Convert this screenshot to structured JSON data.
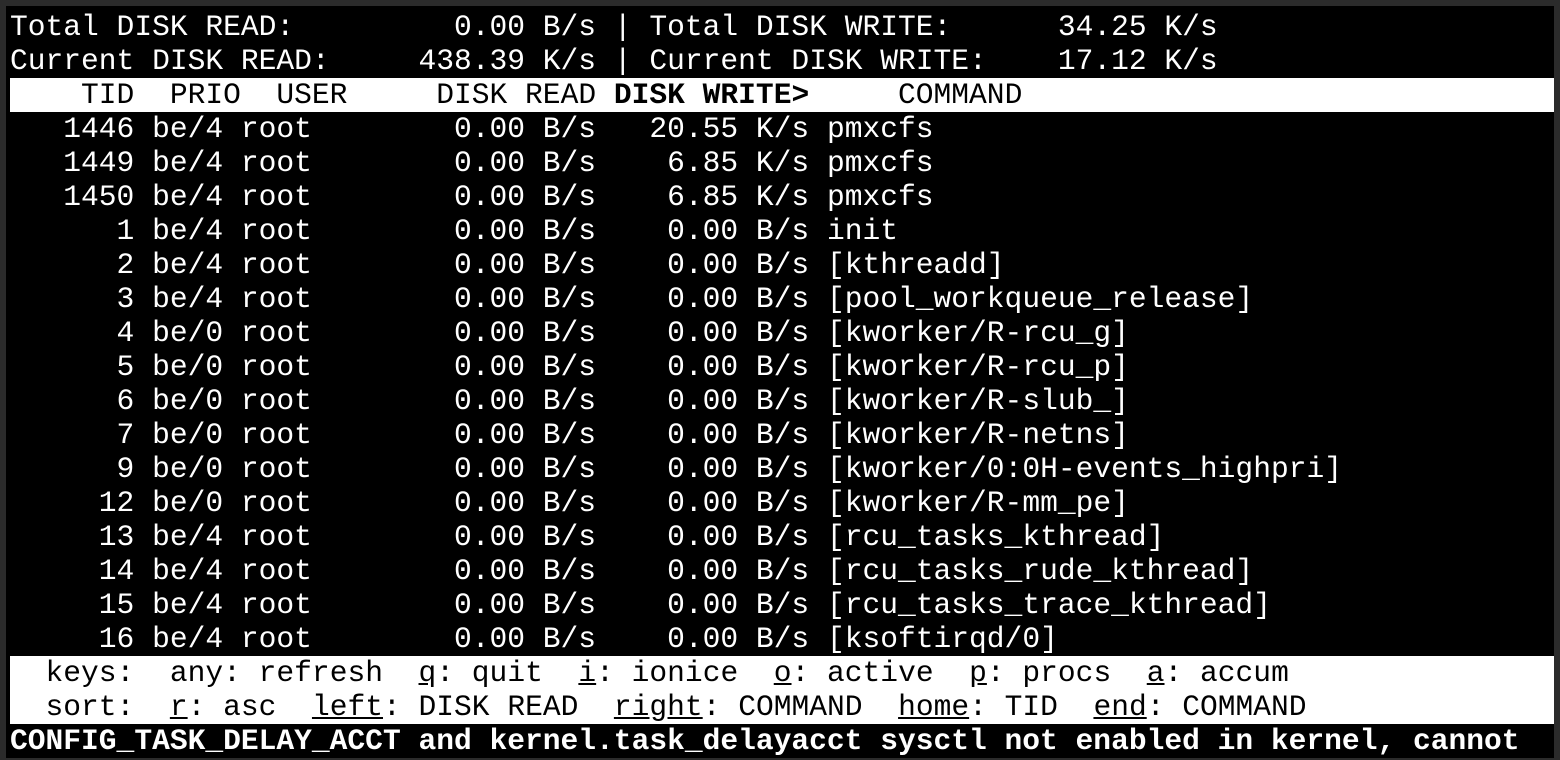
{
  "summary": {
    "total_read_label": "Total DISK READ:",
    "total_read_value": "0.00 B/s",
    "total_write_label": "Total DISK WRITE:",
    "total_write_value": "34.25 K/s",
    "current_read_label": "Current DISK READ:",
    "current_read_value": "438.39 K/s",
    "current_write_label": "Current DISK WRITE:",
    "current_write_value": "17.12 K/s"
  },
  "columns": {
    "tid": "TID",
    "prio": "PRIO",
    "user": "USER",
    "disk_read": "DISK READ",
    "disk_write": "DISK WRITE>",
    "command": "COMMAND"
  },
  "rows": [
    {
      "tid": "1446",
      "prio": "be/4",
      "user": "root",
      "read": "0.00 B/s",
      "write": "20.55 K/s",
      "command": "pmxcfs"
    },
    {
      "tid": "1449",
      "prio": "be/4",
      "user": "root",
      "read": "0.00 B/s",
      "write": "6.85 K/s",
      "command": "pmxcfs"
    },
    {
      "tid": "1450",
      "prio": "be/4",
      "user": "root",
      "read": "0.00 B/s",
      "write": "6.85 K/s",
      "command": "pmxcfs"
    },
    {
      "tid": "1",
      "prio": "be/4",
      "user": "root",
      "read": "0.00 B/s",
      "write": "0.00 B/s",
      "command": "init"
    },
    {
      "tid": "2",
      "prio": "be/4",
      "user": "root",
      "read": "0.00 B/s",
      "write": "0.00 B/s",
      "command": "[kthreadd]"
    },
    {
      "tid": "3",
      "prio": "be/4",
      "user": "root",
      "read": "0.00 B/s",
      "write": "0.00 B/s",
      "command": "[pool_workqueue_release]"
    },
    {
      "tid": "4",
      "prio": "be/0",
      "user": "root",
      "read": "0.00 B/s",
      "write": "0.00 B/s",
      "command": "[kworker/R-rcu_g]"
    },
    {
      "tid": "5",
      "prio": "be/0",
      "user": "root",
      "read": "0.00 B/s",
      "write": "0.00 B/s",
      "command": "[kworker/R-rcu_p]"
    },
    {
      "tid": "6",
      "prio": "be/0",
      "user": "root",
      "read": "0.00 B/s",
      "write": "0.00 B/s",
      "command": "[kworker/R-slub_]"
    },
    {
      "tid": "7",
      "prio": "be/0",
      "user": "root",
      "read": "0.00 B/s",
      "write": "0.00 B/s",
      "command": "[kworker/R-netns]"
    },
    {
      "tid": "9",
      "prio": "be/0",
      "user": "root",
      "read": "0.00 B/s",
      "write": "0.00 B/s",
      "command": "[kworker/0:0H-events_highpri]"
    },
    {
      "tid": "12",
      "prio": "be/0",
      "user": "root",
      "read": "0.00 B/s",
      "write": "0.00 B/s",
      "command": "[kworker/R-mm_pe]"
    },
    {
      "tid": "13",
      "prio": "be/4",
      "user": "root",
      "read": "0.00 B/s",
      "write": "0.00 B/s",
      "command": "[rcu_tasks_kthread]"
    },
    {
      "tid": "14",
      "prio": "be/4",
      "user": "root",
      "read": "0.00 B/s",
      "write": "0.00 B/s",
      "command": "[rcu_tasks_rude_kthread]"
    },
    {
      "tid": "15",
      "prio": "be/4",
      "user": "root",
      "read": "0.00 B/s",
      "write": "0.00 B/s",
      "command": "[rcu_tasks_trace_kthread]"
    },
    {
      "tid": "16",
      "prio": "be/4",
      "user": "root",
      "read": "0.00 B/s",
      "write": "0.00 B/s",
      "command": "[ksoftirqd/0]"
    }
  ],
  "footer": {
    "keys_label": "keys:",
    "keys": [
      {
        "key": "any",
        "underline": false,
        "desc": "refresh"
      },
      {
        "key": "q",
        "underline": true,
        "desc": "quit"
      },
      {
        "key": "i",
        "underline": true,
        "desc": "ionice"
      },
      {
        "key": "o",
        "underline": true,
        "desc": "active"
      },
      {
        "key": "p",
        "underline": true,
        "desc": "procs"
      },
      {
        "key": "a",
        "underline": true,
        "desc": "accum"
      }
    ],
    "sort_label": "sort:",
    "sort": [
      {
        "key": "r",
        "underline": true,
        "desc": "asc"
      },
      {
        "key": "left",
        "underline": true,
        "desc": "DISK READ"
      },
      {
        "key": "right",
        "underline": true,
        "desc": "COMMAND"
      },
      {
        "key": "home",
        "underline": true,
        "desc": "TID"
      },
      {
        "key": "end",
        "underline": true,
        "desc": "COMMAND"
      }
    ]
  },
  "status_message": "CONFIG_TASK_DELAY_ACCT and kernel.task_delayacct sysctl not enabled in kernel, cannot"
}
